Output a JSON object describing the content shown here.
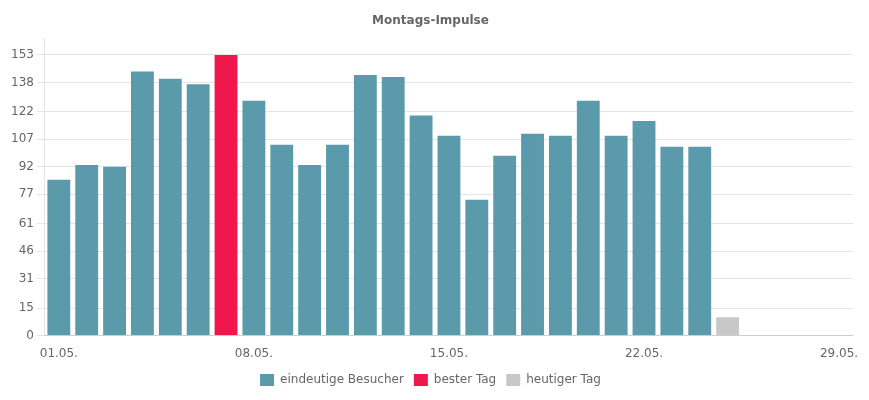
{
  "chart_data": {
    "type": "bar",
    "title": "Montags-Impulse",
    "categories": [
      "01.05.",
      null,
      null,
      null,
      null,
      null,
      null,
      "08.05.",
      null,
      null,
      null,
      null,
      null,
      null,
      "15.05.",
      null,
      null,
      null,
      null,
      null,
      null,
      "22.05.",
      null,
      null,
      null,
      null,
      null,
      null,
      "29.05."
    ],
    "series": [
      {
        "name": "eindeutige Besucher",
        "color": "#5b9aaa",
        "values": [
          85,
          93,
          92,
          144,
          140,
          137,
          null,
          128,
          104,
          93,
          104,
          142,
          141,
          120,
          109,
          74,
          98,
          110,
          109,
          128,
          109,
          117,
          103,
          103,
          null,
          null,
          null,
          null,
          null
        ]
      },
      {
        "name": "bester Tag",
        "color": "#f0174c",
        "values": [
          null,
          null,
          null,
          null,
          null,
          null,
          153,
          null,
          null,
          null,
          null,
          null,
          null,
          null,
          null,
          null,
          null,
          null,
          null,
          null,
          null,
          null,
          null,
          null,
          null,
          null,
          null,
          null,
          null
        ]
      },
      {
        "name": "heutiger Tag",
        "color": "#c8c8c8",
        "values": [
          null,
          null,
          null,
          null,
          null,
          null,
          null,
          null,
          null,
          null,
          null,
          null,
          null,
          null,
          null,
          null,
          null,
          null,
          null,
          null,
          null,
          null,
          null,
          null,
          10,
          null,
          null,
          null,
          null
        ]
      }
    ],
    "ylim": [
      0,
      162
    ],
    "yticks": [
      0,
      15,
      31,
      46,
      61,
      77,
      92,
      107,
      122,
      138,
      153
    ],
    "grid": true,
    "legend": "bottom"
  }
}
